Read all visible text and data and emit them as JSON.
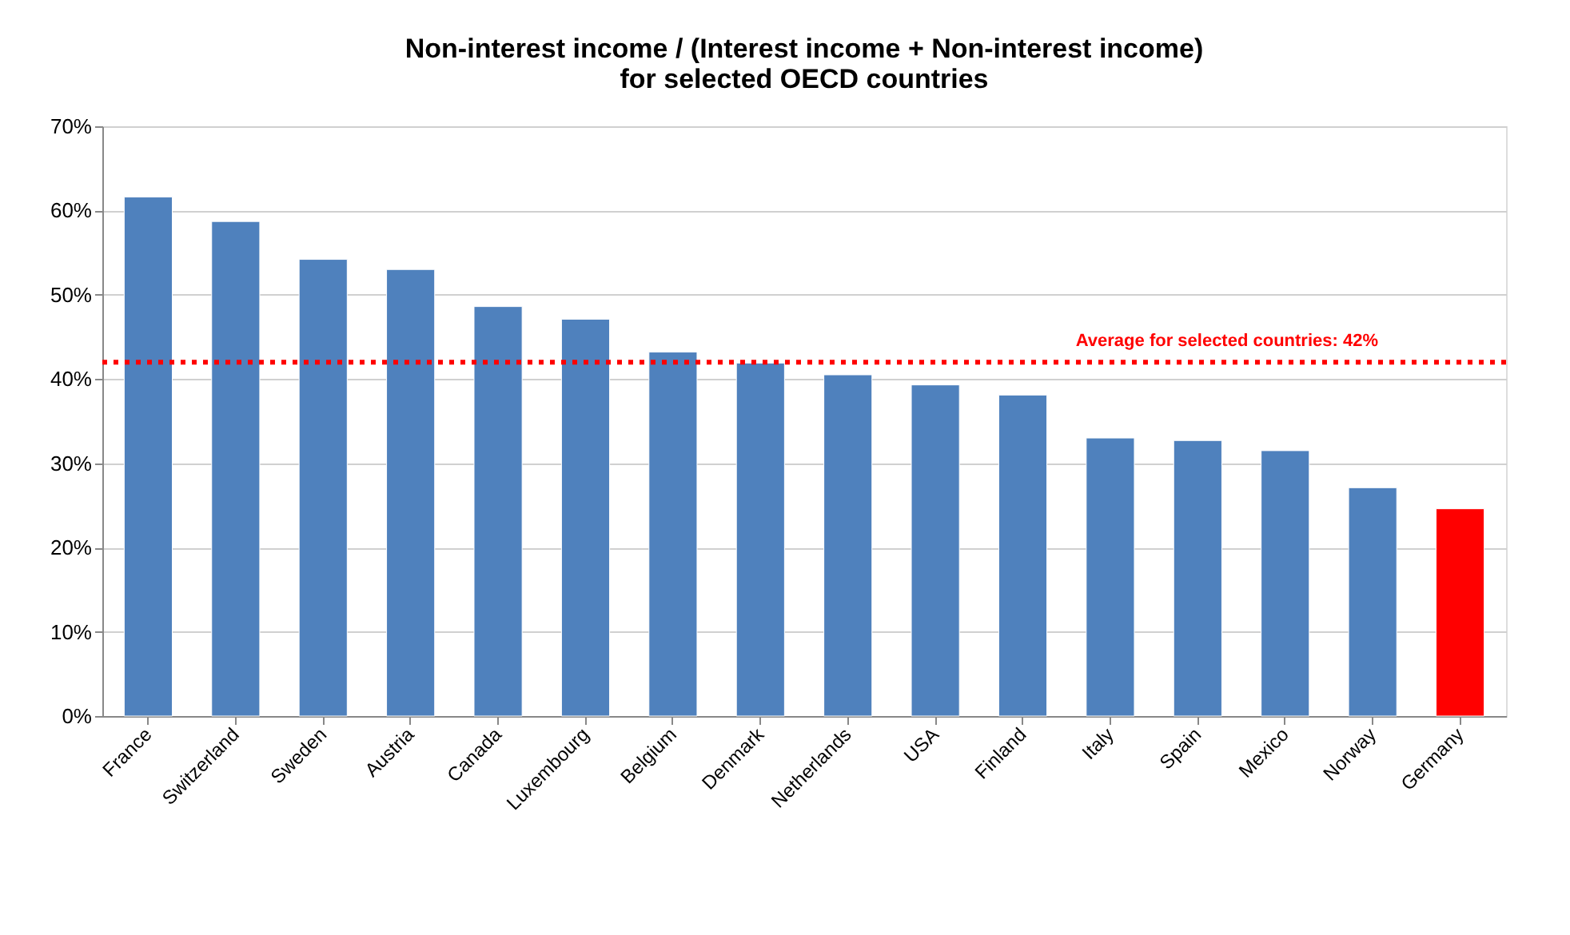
{
  "chart_data": {
    "type": "bar",
    "title": [
      "Non-interest income / (Interest income + Non-interest income)",
      "for selected OECD countries"
    ],
    "categories": [
      "France",
      "Switzerland",
      "Sweden",
      "Austria",
      "Canada",
      "Luxembourg",
      "Belgium",
      "Denmark",
      "Netherlands",
      "USA",
      "Finland",
      "Italy",
      "Spain",
      "Mexico",
      "Norway",
      "Germany"
    ],
    "values": [
      61.6,
      58.7,
      54.2,
      53.0,
      48.6,
      47.1,
      43.2,
      41.9,
      40.5,
      39.3,
      38.1,
      33.0,
      32.7,
      31.5,
      27.1,
      24.6
    ],
    "colors": [
      "#4f81bd",
      "#4f81bd",
      "#4f81bd",
      "#4f81bd",
      "#4f81bd",
      "#4f81bd",
      "#4f81bd",
      "#4f81bd",
      "#4f81bd",
      "#4f81bd",
      "#4f81bd",
      "#4f81bd",
      "#4f81bd",
      "#4f81bd",
      "#4f81bd",
      "#ff0000"
    ],
    "ylim": [
      0,
      70
    ],
    "yticks": [
      {
        "value": 0,
        "label": "0%"
      },
      {
        "value": 10,
        "label": "10%"
      },
      {
        "value": 20,
        "label": "20%"
      },
      {
        "value": 30,
        "label": "30%"
      },
      {
        "value": 40,
        "label": "40%"
      },
      {
        "value": 50,
        "label": "50%"
      },
      {
        "value": 60,
        "label": "60%"
      },
      {
        "value": 70,
        "label": "70%"
      }
    ],
    "grid": "y",
    "ref_lines": [
      {
        "axis": "y",
        "value": 42,
        "label": "Average for selected countries:  42%",
        "color": "#ff0000",
        "line_style": "dotted"
      }
    ]
  }
}
